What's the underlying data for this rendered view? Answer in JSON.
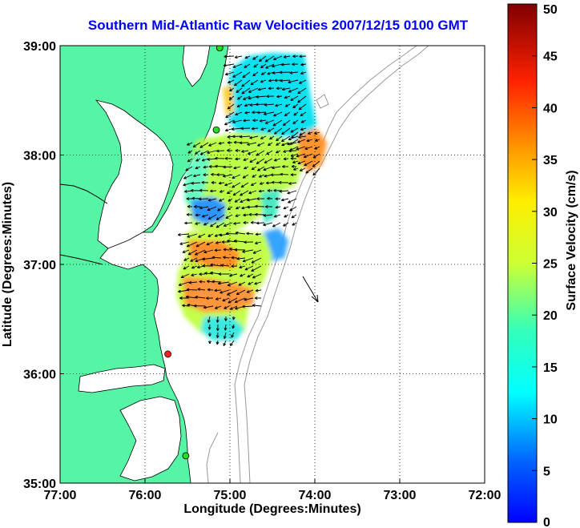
{
  "title": "Southern Mid-Atlantic Raw Velocities 2007/12/15 0100 GMT",
  "map": {
    "lon_range": [
      -77,
      -72
    ],
    "lat_range": [
      35,
      39
    ],
    "x_label": "Longitude (Degrees:Minutes)",
    "y_label": "Latitude (Degrees:Minutes)",
    "x_ticks": [
      {
        "value": -77,
        "label": "77:00"
      },
      {
        "value": -76,
        "label": "76:00"
      },
      {
        "value": -75,
        "label": "75:00"
      },
      {
        "value": -74,
        "label": "74:00"
      },
      {
        "value": -73,
        "label": "73:00"
      },
      {
        "value": -72,
        "label": "72:00"
      }
    ],
    "y_ticks": [
      {
        "value": 39,
        "label": "39:00"
      },
      {
        "value": 38,
        "label": "38:00"
      },
      {
        "value": 37,
        "label": "37:00"
      },
      {
        "value": 36,
        "label": "36:00"
      },
      {
        "value": 35,
        "label": "35:00"
      }
    ],
    "colors": {
      "land": "#55f5a5",
      "water": "#ffffff",
      "bathymetry": "#999999",
      "grid": "#000000",
      "vector": "#000000"
    },
    "stations": [
      {
        "lon": -75.12,
        "lat": 38.98,
        "color": "#22dd22"
      },
      {
        "lon": -75.16,
        "lat": 38.23,
        "color": "#22dd22"
      },
      {
        "lon": -75.73,
        "lat": 36.18,
        "color": "#ff2020"
      },
      {
        "lon": -75.52,
        "lat": 35.25,
        "color": "#22dd22"
      }
    ]
  },
  "colorbar": {
    "label": "Surface Velocity (cm/s)",
    "min": 0,
    "max": 50,
    "ticks": [
      {
        "value": 0,
        "label": "0"
      },
      {
        "value": 5,
        "label": "5"
      },
      {
        "value": 10,
        "label": "10"
      },
      {
        "value": 15,
        "label": "15"
      },
      {
        "value": 20,
        "label": "20"
      },
      {
        "value": 25,
        "label": "25"
      },
      {
        "value": 30,
        "label": "30"
      },
      {
        "value": 35,
        "label": "35"
      },
      {
        "value": 40,
        "label": "40"
      },
      {
        "value": 45,
        "label": "45"
      },
      {
        "value": 50,
        "label": "50"
      }
    ]
  }
}
